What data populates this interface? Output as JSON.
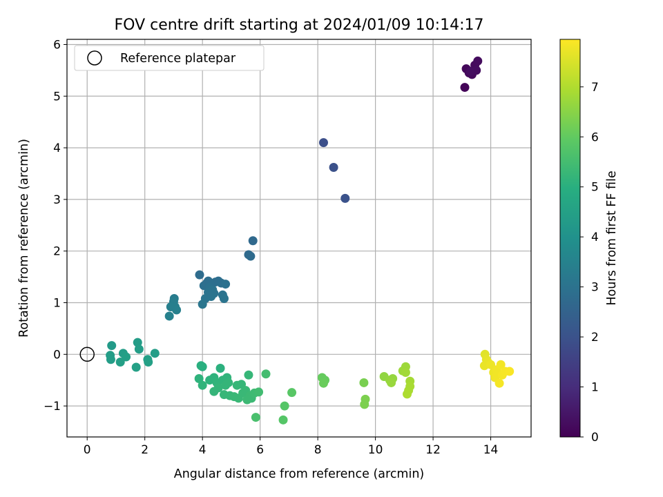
{
  "chart_data": {
    "type": "scatter",
    "title": "FOV centre drift starting at 2024/01/09 10:14:17",
    "xlabel": "Angular distance from reference (arcmin)",
    "ylabel": "Rotation from reference (arcmin)",
    "xlim": [
      -0.7,
      15.4
    ],
    "ylim": [
      -1.6,
      6.1
    ],
    "xticks": [
      0,
      2,
      4,
      6,
      8,
      10,
      12,
      14
    ],
    "yticks": [
      -1,
      0,
      1,
      2,
      3,
      4,
      5,
      6
    ],
    "grid": true,
    "legend": {
      "position": "top-left",
      "entries": [
        "Reference platepar"
      ]
    },
    "reference_point": {
      "x": 0,
      "y": 0,
      "label": "Reference platepar"
    },
    "colorbar": {
      "label": "Hours from first FF file",
      "colormap": "viridis",
      "range": [
        0,
        7.95
      ],
      "ticks": [
        0,
        1,
        2,
        3,
        4,
        5,
        6,
        7
      ]
    },
    "points": [
      {
        "x": 13.1,
        "y": 5.17,
        "c": 0.1
      },
      {
        "x": 13.15,
        "y": 5.53,
        "c": 0.15
      },
      {
        "x": 13.25,
        "y": 5.45,
        "c": 0.18
      },
      {
        "x": 13.35,
        "y": 5.42,
        "c": 0.2
      },
      {
        "x": 13.45,
        "y": 5.6,
        "c": 0.22
      },
      {
        "x": 13.55,
        "y": 5.68,
        "c": 0.25
      },
      {
        "x": 13.5,
        "y": 5.5,
        "c": 0.28
      },
      {
        "x": 13.3,
        "y": 5.48,
        "c": 0.3
      },
      {
        "x": 8.2,
        "y": 4.1,
        "c": 1.9
      },
      {
        "x": 8.55,
        "y": 3.62,
        "c": 1.95
      },
      {
        "x": 8.95,
        "y": 3.02,
        "c": 2.0
      },
      {
        "x": 5.75,
        "y": 2.2,
        "c": 2.7
      },
      {
        "x": 5.6,
        "y": 1.93,
        "c": 2.72
      },
      {
        "x": 5.67,
        "y": 1.9,
        "c": 2.75
      },
      {
        "x": 3.9,
        "y": 1.54,
        "c": 2.8
      },
      {
        "x": 4.05,
        "y": 1.33,
        "c": 2.9
      },
      {
        "x": 4.15,
        "y": 1.38,
        "c": 2.88
      },
      {
        "x": 4.2,
        "y": 1.42,
        "c": 2.85
      },
      {
        "x": 4.25,
        "y": 1.3,
        "c": 2.95
      },
      {
        "x": 4.35,
        "y": 1.25,
        "c": 3.0
      },
      {
        "x": 4.45,
        "y": 1.4,
        "c": 2.9
      },
      {
        "x": 4.55,
        "y": 1.42,
        "c": 2.85
      },
      {
        "x": 4.65,
        "y": 1.38,
        "c": 2.9
      },
      {
        "x": 4.4,
        "y": 1.18,
        "c": 3.0
      },
      {
        "x": 4.3,
        "y": 1.12,
        "c": 3.05
      },
      {
        "x": 4.1,
        "y": 1.08,
        "c": 3.05
      },
      {
        "x": 4.2,
        "y": 1.2,
        "c": 3.0
      },
      {
        "x": 4.0,
        "y": 0.97,
        "c": 3.1
      },
      {
        "x": 4.7,
        "y": 1.15,
        "c": 3.0
      },
      {
        "x": 4.75,
        "y": 1.08,
        "c": 3.05
      },
      {
        "x": 4.8,
        "y": 1.36,
        "c": 2.95
      },
      {
        "x": 3.02,
        "y": 1.08,
        "c": 3.3
      },
      {
        "x": 3.0,
        "y": 1.02,
        "c": 3.35
      },
      {
        "x": 3.05,
        "y": 0.92,
        "c": 3.4
      },
      {
        "x": 3.1,
        "y": 0.86,
        "c": 3.42
      },
      {
        "x": 2.9,
        "y": 0.92,
        "c": 3.4
      },
      {
        "x": 2.85,
        "y": 0.74,
        "c": 3.45
      },
      {
        "x": 0.85,
        "y": 0.17,
        "c": 4.3
      },
      {
        "x": 0.8,
        "y": -0.02,
        "c": 4.4
      },
      {
        "x": 0.82,
        "y": -0.1,
        "c": 4.4
      },
      {
        "x": 1.15,
        "y": -0.15,
        "c": 4.45
      },
      {
        "x": 1.25,
        "y": 0.02,
        "c": 4.4
      },
      {
        "x": 1.35,
        "y": -0.05,
        "c": 4.45
      },
      {
        "x": 1.75,
        "y": 0.23,
        "c": 4.35
      },
      {
        "x": 1.8,
        "y": 0.1,
        "c": 4.4
      },
      {
        "x": 1.7,
        "y": -0.25,
        "c": 4.5
      },
      {
        "x": 2.1,
        "y": -0.1,
        "c": 4.45
      },
      {
        "x": 2.12,
        "y": -0.15,
        "c": 4.5
      },
      {
        "x": 2.35,
        "y": 0.02,
        "c": 4.4
      },
      {
        "x": 3.95,
        "y": -0.22,
        "c": 5.0
      },
      {
        "x": 4.0,
        "y": -0.24,
        "c": 5.0
      },
      {
        "x": 3.88,
        "y": -0.47,
        "c": 5.1
      },
      {
        "x": 4.0,
        "y": -0.6,
        "c": 5.15
      },
      {
        "x": 4.25,
        "y": -0.5,
        "c": 5.1
      },
      {
        "x": 4.4,
        "y": -0.45,
        "c": 5.1
      },
      {
        "x": 4.5,
        "y": -0.55,
        "c": 5.15
      },
      {
        "x": 4.55,
        "y": -0.65,
        "c": 5.2
      },
      {
        "x": 4.4,
        "y": -0.72,
        "c": 5.2
      },
      {
        "x": 4.62,
        "y": -0.27,
        "c": 5.05
      },
      {
        "x": 4.7,
        "y": -0.5,
        "c": 5.15
      },
      {
        "x": 4.8,
        "y": -0.6,
        "c": 5.2
      },
      {
        "x": 4.85,
        "y": -0.45,
        "c": 5.15
      },
      {
        "x": 4.9,
        "y": -0.55,
        "c": 5.2
      },
      {
        "x": 4.75,
        "y": -0.78,
        "c": 5.25
      },
      {
        "x": 4.95,
        "y": -0.8,
        "c": 5.25
      },
      {
        "x": 5.1,
        "y": -0.82,
        "c": 5.3
      },
      {
        "x": 5.2,
        "y": -0.6,
        "c": 5.25
      },
      {
        "x": 5.25,
        "y": -0.85,
        "c": 5.3
      },
      {
        "x": 5.35,
        "y": -0.58,
        "c": 5.25
      },
      {
        "x": 5.4,
        "y": -0.75,
        "c": 5.3
      },
      {
        "x": 5.5,
        "y": -0.7,
        "c": 5.3
      },
      {
        "x": 5.55,
        "y": -0.88,
        "c": 5.35
      },
      {
        "x": 5.6,
        "y": -0.4,
        "c": 5.25
      },
      {
        "x": 5.65,
        "y": -0.8,
        "c": 5.35
      },
      {
        "x": 5.7,
        "y": -0.85,
        "c": 5.35
      },
      {
        "x": 5.8,
        "y": -0.75,
        "c": 5.4
      },
      {
        "x": 5.95,
        "y": -0.73,
        "c": 5.45
      },
      {
        "x": 6.2,
        "y": -0.38,
        "c": 5.5
      },
      {
        "x": 5.85,
        "y": -1.22,
        "c": 5.6
      },
      {
        "x": 6.85,
        "y": -1.0,
        "c": 5.8
      },
      {
        "x": 6.8,
        "y": -1.27,
        "c": 5.8
      },
      {
        "x": 7.1,
        "y": -0.74,
        "c": 5.85
      },
      {
        "x": 8.15,
        "y": -0.45,
        "c": 6.05
      },
      {
        "x": 8.25,
        "y": -0.5,
        "c": 6.05
      },
      {
        "x": 8.2,
        "y": -0.56,
        "c": 6.1
      },
      {
        "x": 9.6,
        "y": -0.55,
        "c": 6.3
      },
      {
        "x": 9.65,
        "y": -0.87,
        "c": 6.35
      },
      {
        "x": 9.62,
        "y": -0.97,
        "c": 6.35
      },
      {
        "x": 10.3,
        "y": -0.43,
        "c": 6.6
      },
      {
        "x": 10.5,
        "y": -0.5,
        "c": 6.65
      },
      {
        "x": 10.6,
        "y": -0.47,
        "c": 6.65
      },
      {
        "x": 10.55,
        "y": -0.55,
        "c": 6.7
      },
      {
        "x": 10.95,
        "y": -0.32,
        "c": 6.75
      },
      {
        "x": 11.05,
        "y": -0.24,
        "c": 6.75
      },
      {
        "x": 11.05,
        "y": -0.35,
        "c": 6.8
      },
      {
        "x": 11.2,
        "y": -0.52,
        "c": 6.85
      },
      {
        "x": 11.2,
        "y": -0.62,
        "c": 6.9
      },
      {
        "x": 11.15,
        "y": -0.7,
        "c": 6.9
      },
      {
        "x": 11.1,
        "y": -0.77,
        "c": 6.95
      },
      {
        "x": 13.8,
        "y": 0.0,
        "c": 7.6
      },
      {
        "x": 13.85,
        "y": -0.1,
        "c": 7.65
      },
      {
        "x": 13.9,
        "y": -0.15,
        "c": 7.7
      },
      {
        "x": 13.78,
        "y": -0.22,
        "c": 7.7
      },
      {
        "x": 14.0,
        "y": -0.2,
        "c": 7.75
      },
      {
        "x": 14.1,
        "y": -0.35,
        "c": 7.75
      },
      {
        "x": 14.15,
        "y": -0.45,
        "c": 7.8
      },
      {
        "x": 14.2,
        "y": -0.3,
        "c": 7.8
      },
      {
        "x": 14.25,
        "y": -0.38,
        "c": 7.8
      },
      {
        "x": 14.35,
        "y": -0.2,
        "c": 7.82
      },
      {
        "x": 14.3,
        "y": -0.56,
        "c": 7.85
      },
      {
        "x": 14.4,
        "y": -0.4,
        "c": 7.85
      },
      {
        "x": 14.5,
        "y": -0.33,
        "c": 7.88
      },
      {
        "x": 14.65,
        "y": -0.33,
        "c": 7.9
      }
    ]
  }
}
